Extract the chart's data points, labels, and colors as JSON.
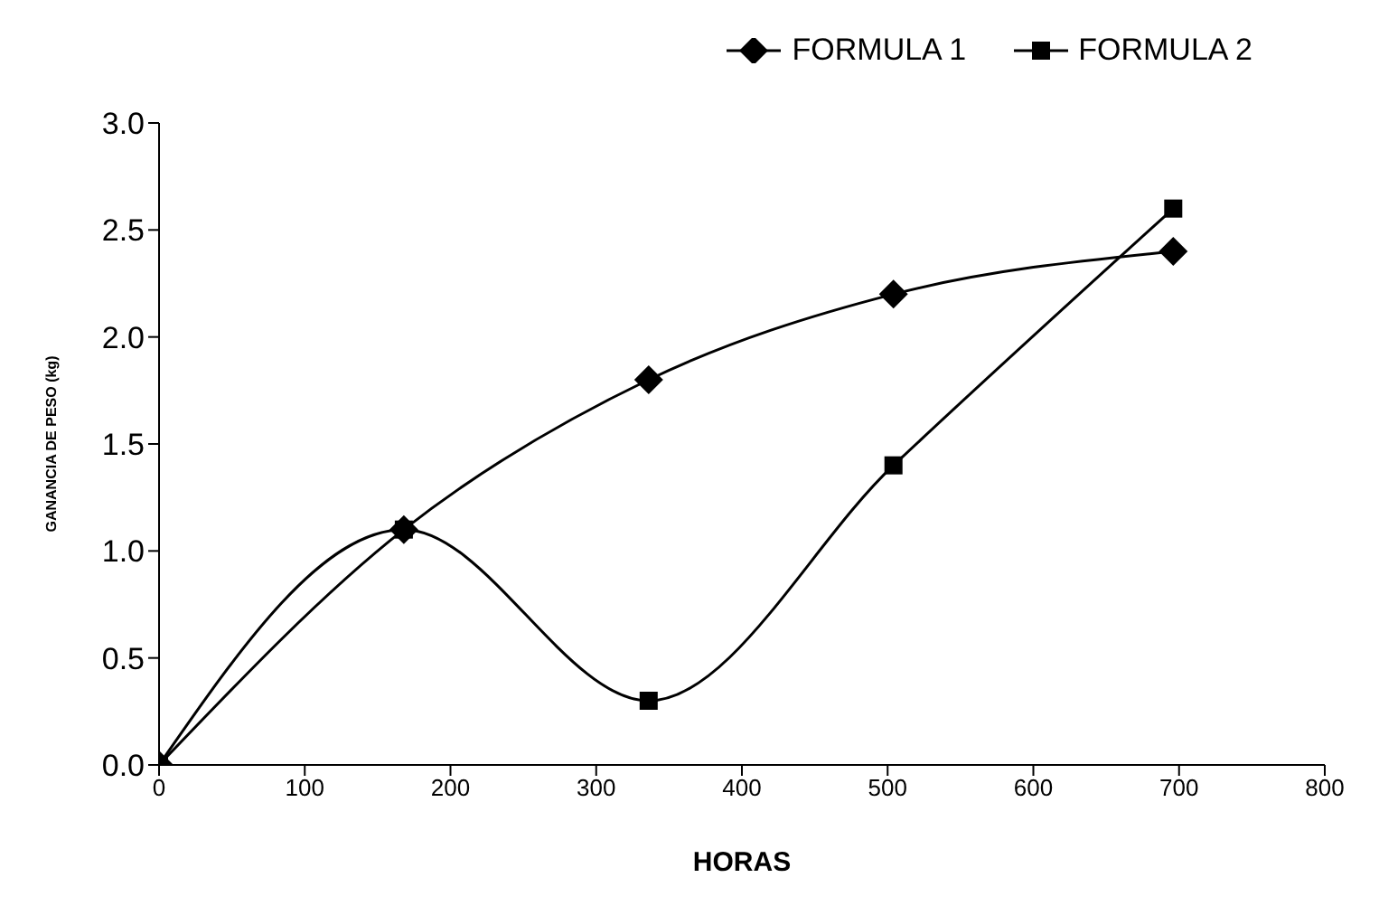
{
  "chart_data": {
    "type": "line",
    "xlabel": "HORAS",
    "ylabel": "GANANCIA DE PESO (kg)",
    "x": [
      0,
      168,
      336,
      504,
      696
    ],
    "series": [
      {
        "name": "FORMULA 1",
        "color": "#000000",
        "marker": "diamond",
        "values": [
          0,
          1.1,
          1.8,
          2.2,
          2.4
        ]
      },
      {
        "name": "FORMULA 2",
        "color": "#000000",
        "marker": "square",
        "values": [
          0,
          1.1,
          0.3,
          1.4,
          2.6
        ]
      }
    ],
    "xlim": [
      0,
      800
    ],
    "xticks": [
      0,
      100,
      200,
      300,
      400,
      500,
      600,
      700,
      800
    ],
    "ylim": [
      0,
      3
    ],
    "yticks": [
      {
        "value": 0,
        "label": "0.0"
      },
      {
        "value": 0.5,
        "label": "0.5"
      },
      {
        "value": 1,
        "label": "1.0"
      },
      {
        "value": 1.5,
        "label": "1.5"
      },
      {
        "value": 2,
        "label": "2.0"
      },
      {
        "value": 2.5,
        "label": "2.5"
      },
      {
        "value": 3,
        "label": "3.0"
      }
    ],
    "grid": false,
    "legend": "top right",
    "line_style": "solid"
  }
}
